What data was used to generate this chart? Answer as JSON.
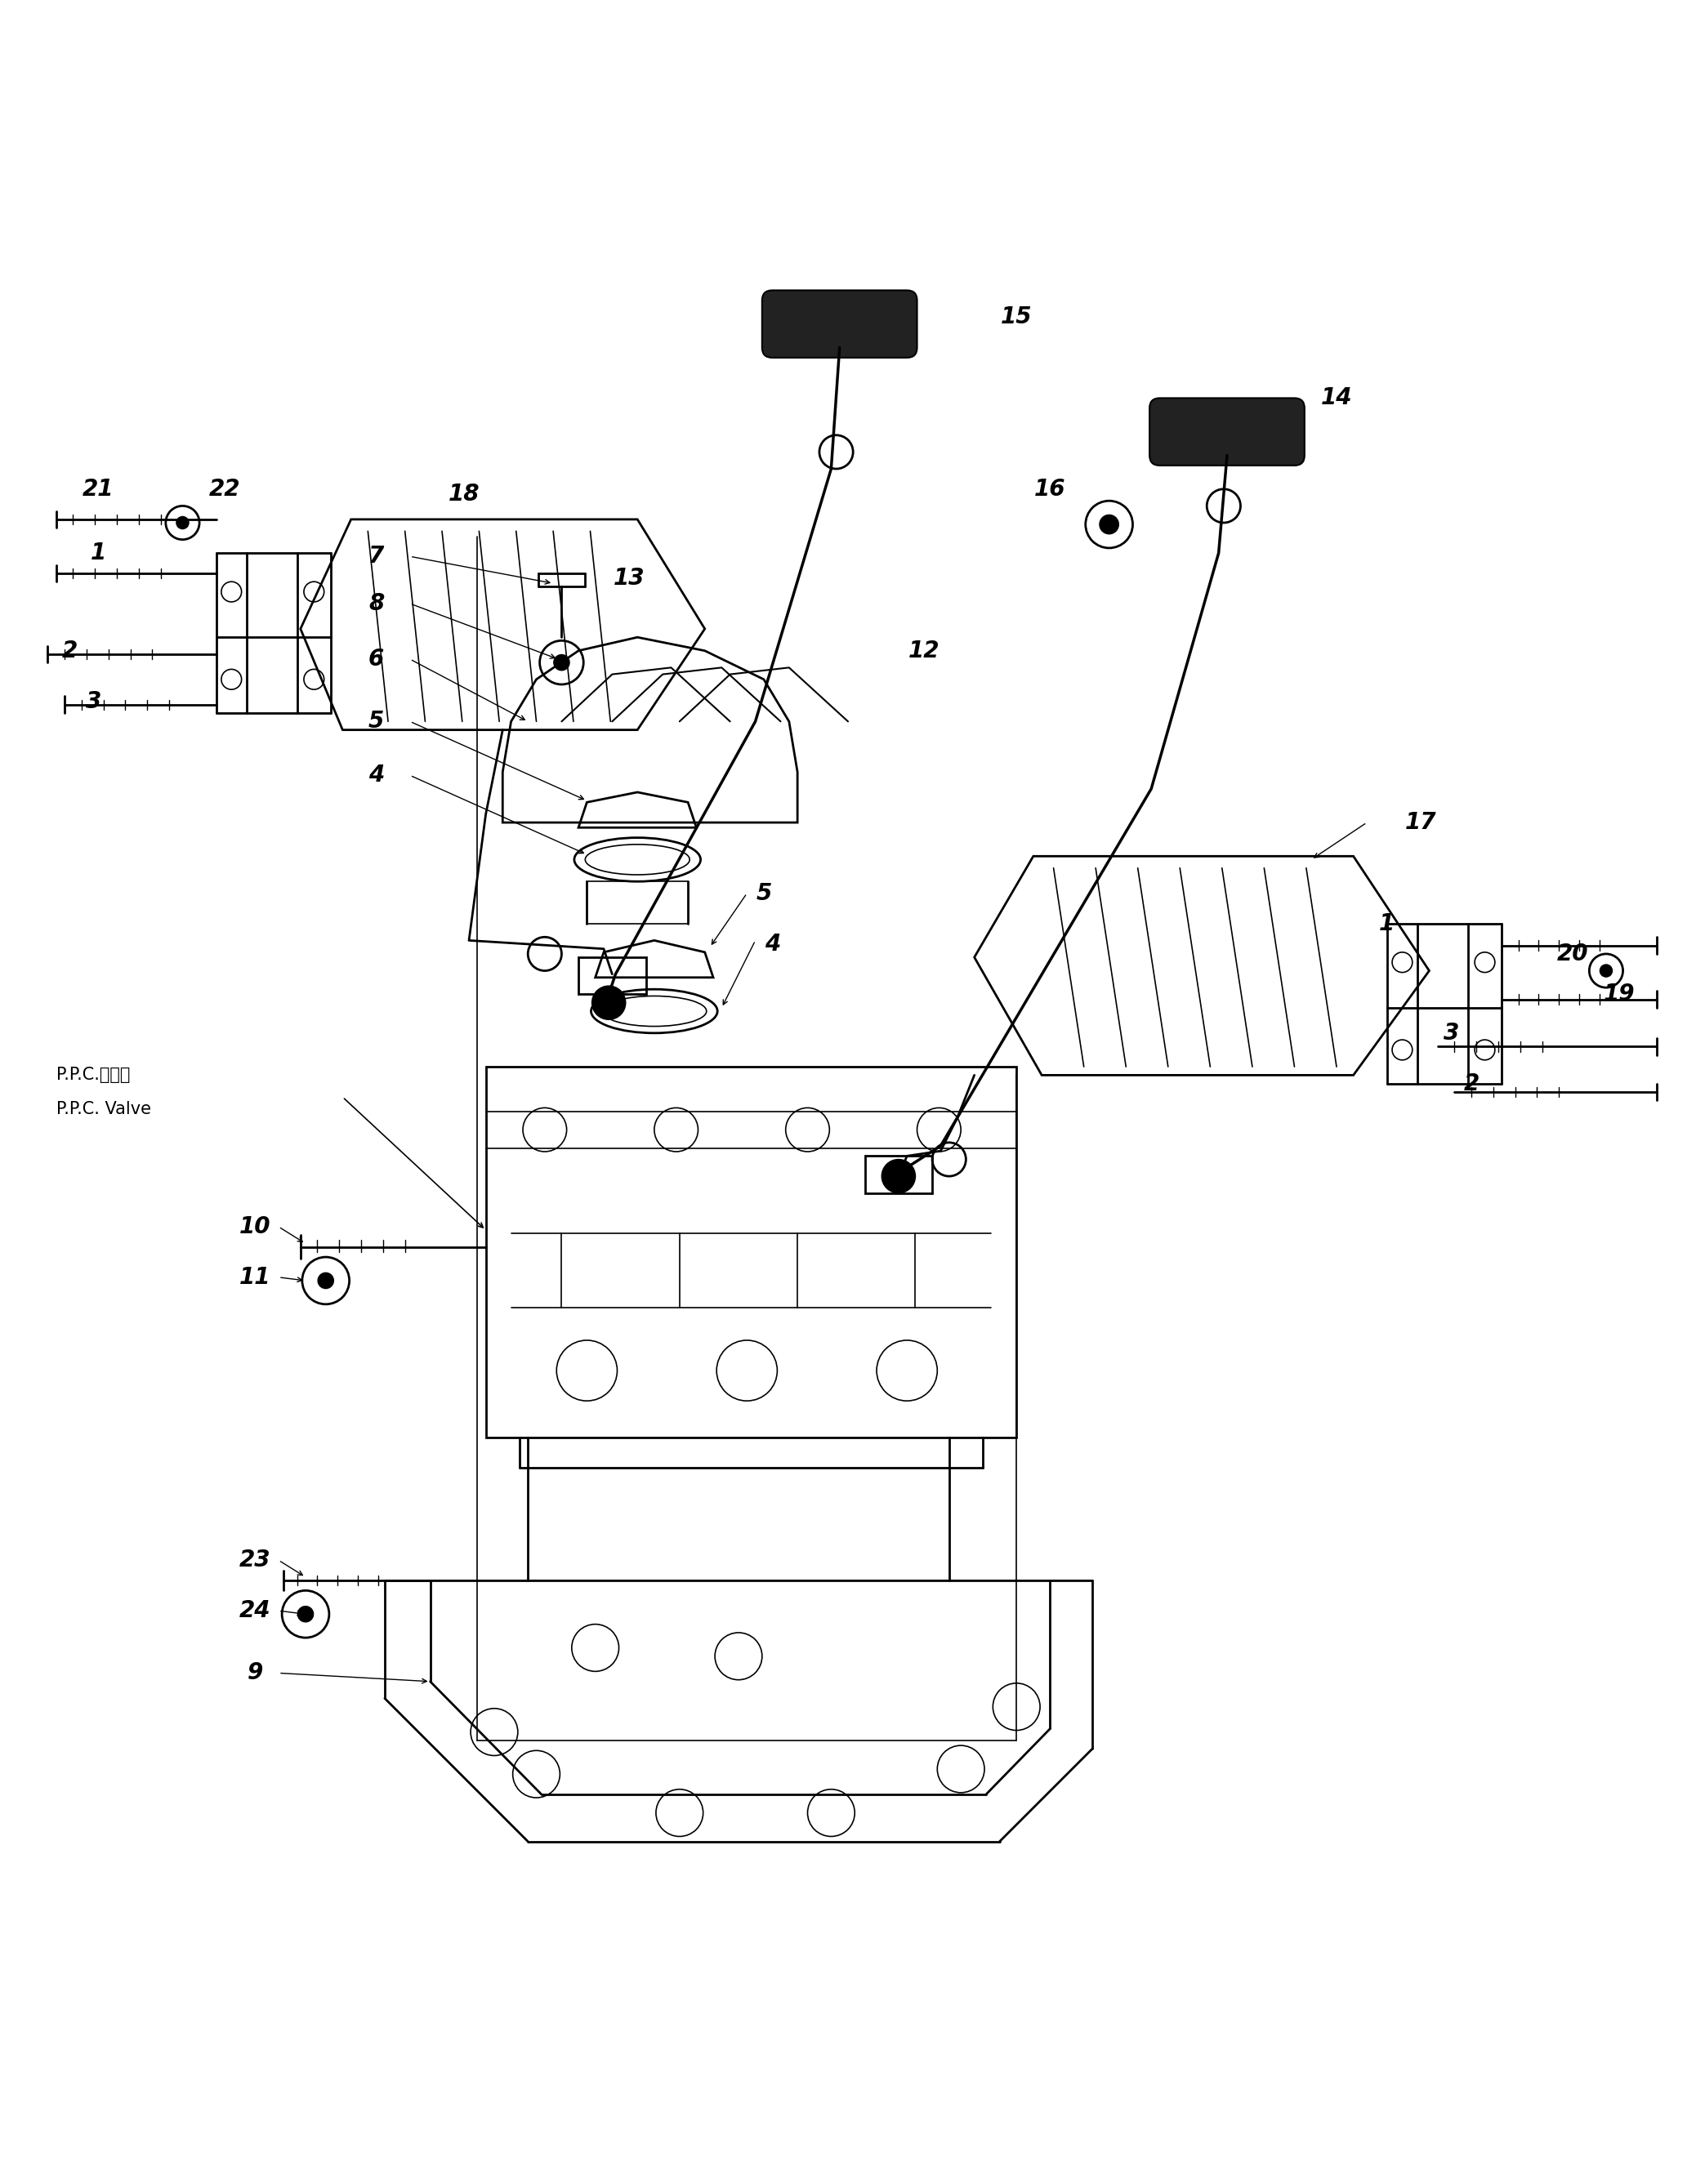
{
  "background_color": "#ffffff",
  "line_color": "#000000",
  "fig_width": 20.76,
  "fig_height": 26.74,
  "label_fontsize": 20,
  "ppc_jp": "P.P.C.バルブ",
  "ppc_en": "P.P.C. Valve"
}
